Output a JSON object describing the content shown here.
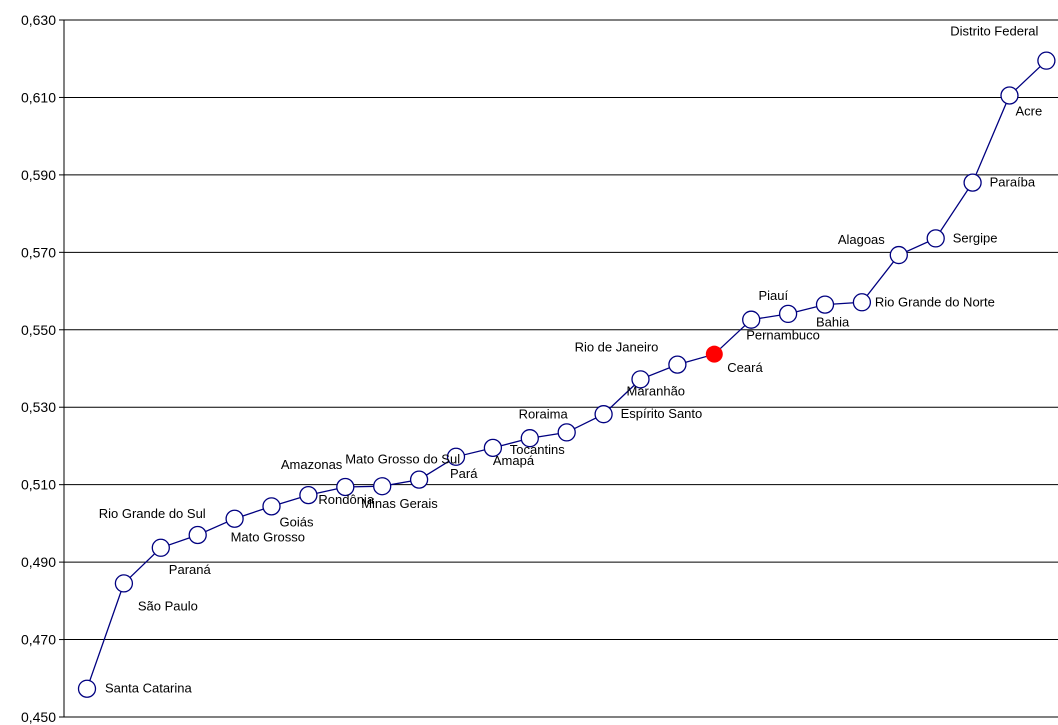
{
  "chart_data": {
    "type": "line",
    "title": "",
    "xlabel": "",
    "ylabel": "",
    "ylim": [
      0.45,
      0.63
    ],
    "yticks": [
      "0,450",
      "0,470",
      "0,490",
      "0,510",
      "0,530",
      "0,550",
      "0,570",
      "0,590",
      "0,610",
      "0,630"
    ],
    "grid": true,
    "highlight_color": "#ff0000",
    "line_color": "#000080",
    "points": [
      {
        "label": "Santa Catarina",
        "value": 0.4573
      },
      {
        "label": "São Paulo",
        "value": 0.4845
      },
      {
        "label": "Paraná",
        "value": 0.4937
      },
      {
        "label": "Rio Grande do Sul",
        "value": 0.497
      },
      {
        "label": "Mato Grosso",
        "value": 0.5012
      },
      {
        "label": "Goiás",
        "value": 0.5044
      },
      {
        "label": "Rondônia",
        "value": 0.5073
      },
      {
        "label": "Amazonas",
        "value": 0.5094
      },
      {
        "label": "Minas Gerais",
        "value": 0.5096
      },
      {
        "label": "Mato Grosso do Sul",
        "value": 0.5113
      },
      {
        "label": "Pará",
        "value": 0.5172
      },
      {
        "label": "Amapá",
        "value": 0.5195
      },
      {
        "label": "Tocantins",
        "value": 0.522
      },
      {
        "label": "Roraima",
        "value": 0.5235
      },
      {
        "label": "Espírito Santo",
        "value": 0.5282
      },
      {
        "label": "Maranhão",
        "value": 0.5372
      },
      {
        "label": "Rio de Janeiro",
        "value": 0.541
      },
      {
        "label": "Ceará",
        "value": 0.5437,
        "highlight": true
      },
      {
        "label": "Pernambuco",
        "value": 0.5526
      },
      {
        "label": "Piauí",
        "value": 0.5541
      },
      {
        "label": "Bahia",
        "value": 0.5565
      },
      {
        "label": "Rio Grande do Norte",
        "value": 0.5571
      },
      {
        "label": "Alagoas",
        "value": 0.5693
      },
      {
        "label": "Sergipe",
        "value": 0.5736
      },
      {
        "label": "Paraíba",
        "value": 0.588
      },
      {
        "label": "Acre",
        "value": 0.6105
      },
      {
        "label": "Distrito Federal",
        "value": 0.6195
      }
    ]
  }
}
